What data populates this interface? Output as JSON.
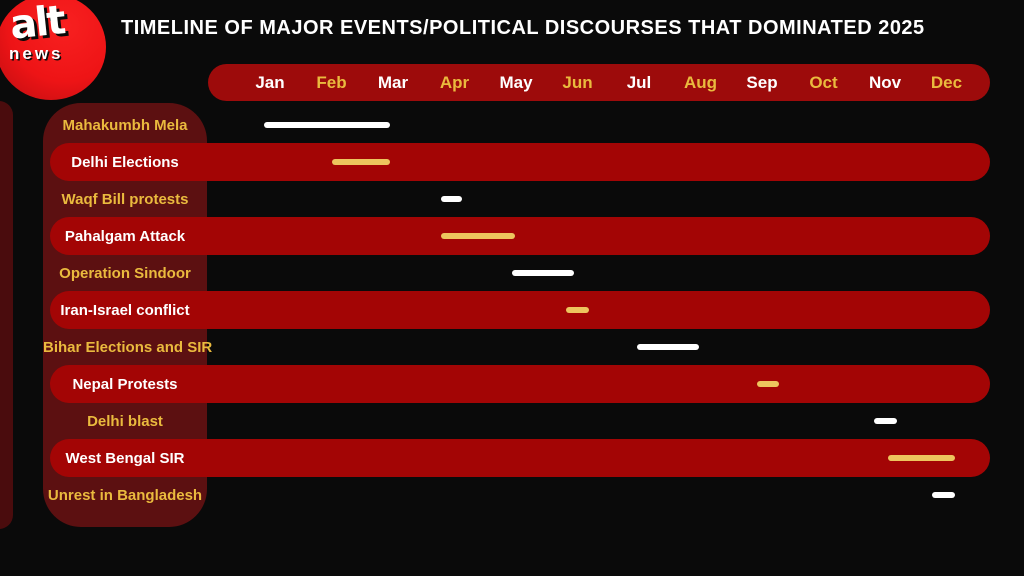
{
  "title": "TIMELINE OF MAJOR EVENTS/POLITICAL DISCOURSES THAT DOMINATED 2025",
  "logo": {
    "line1": "alt",
    "line2": "news"
  },
  "colors": {
    "background": "#0a0a0a",
    "logo_red": "#ee1416",
    "month_bar_red": "#9d0b0b",
    "band_red": "#a30505",
    "sidebar_maroon": "#5c1011",
    "strip_maroon": "#4a0c0d",
    "gold_text": "#eaba3e",
    "gold_bar": "#edc55e",
    "white": "#ffffff"
  },
  "chart_data": {
    "type": "timeline",
    "title": "TIMELINE OF MAJOR EVENTS/POLITICAL DISCOURSES THAT DOMINATED 2025",
    "x_axis": {
      "unit": "month",
      "range": [
        1,
        12
      ],
      "tick_labels": [
        "Jan",
        "Feb",
        "Mar",
        "Apr",
        "May",
        "Jun",
        "Jul",
        "Aug",
        "Sep",
        "Oct",
        "Nov",
        "Dec"
      ]
    },
    "months": [
      {
        "label": "Jan",
        "tone": "white"
      },
      {
        "label": "Feb",
        "tone": "gold"
      },
      {
        "label": "Mar",
        "tone": "white"
      },
      {
        "label": "Apr",
        "tone": "gold"
      },
      {
        "label": "May",
        "tone": "white"
      },
      {
        "label": "Jun",
        "tone": "gold"
      },
      {
        "label": "Jul",
        "tone": "white"
      },
      {
        "label": "Aug",
        "tone": "gold"
      },
      {
        "label": "Sep",
        "tone": "white"
      },
      {
        "label": "Oct",
        "tone": "gold"
      },
      {
        "label": "Nov",
        "tone": "white"
      },
      {
        "label": "Dec",
        "tone": "gold"
      }
    ],
    "events": [
      {
        "label": "Mahakumbh Mela",
        "start_month": 0.9,
        "end_month": 2.95,
        "row_style": "black",
        "bar_color": "white"
      },
      {
        "label": "Delhi Elections",
        "start_month": 2.0,
        "end_month": 2.95,
        "row_style": "red",
        "bar_color": "gold"
      },
      {
        "label": "Waqf Bill protests",
        "start_month": 3.78,
        "end_month": 4.12,
        "row_style": "black",
        "bar_color": "white"
      },
      {
        "label": "Pahalgam Attack",
        "start_month": 3.78,
        "end_month": 4.98,
        "row_style": "red",
        "bar_color": "gold"
      },
      {
        "label": "Operation Sindoor",
        "start_month": 4.93,
        "end_month": 5.94,
        "row_style": "black",
        "bar_color": "white"
      },
      {
        "label": "Iran-Israel conflict",
        "start_month": 5.81,
        "end_month": 6.19,
        "row_style": "red",
        "bar_color": "gold"
      },
      {
        "label": "Bihar Elections and SIR",
        "start_month": 6.97,
        "end_month": 7.98,
        "row_style": "black",
        "bar_color": "white"
      },
      {
        "label": "Nepal Protests",
        "start_month": 8.92,
        "end_month": 9.28,
        "row_style": "red",
        "bar_color": "gold"
      },
      {
        "label": "Delhi blast",
        "start_month": 10.82,
        "end_month": 11.2,
        "row_style": "black",
        "bar_color": "white"
      },
      {
        "label": "West Bengal SIR",
        "start_month": 11.05,
        "end_month": 12.14,
        "row_style": "red",
        "bar_color": "gold"
      },
      {
        "label": "Unrest in Bangladesh",
        "start_month": 11.76,
        "end_month": 12.14,
        "row_style": "black",
        "bar_color": "white"
      }
    ]
  }
}
